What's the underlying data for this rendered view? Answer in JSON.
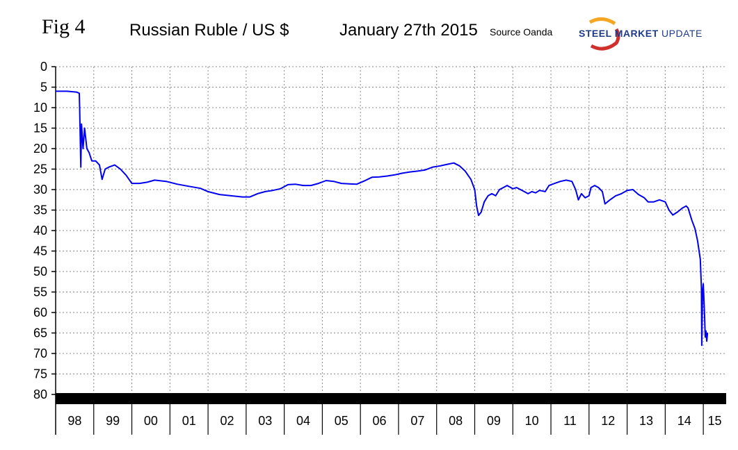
{
  "header": {
    "fig": "Fig 4",
    "title": "Russian Ruble / US $",
    "date": "January 27th 2015",
    "source": "Source Oanda"
  },
  "logo": {
    "text_main": "STEEL MARKET",
    "text_update": "UPDATE",
    "colors": {
      "orange": "#f5a623",
      "red": "#d0312d",
      "blue": "#1e3a8a"
    }
  },
  "chart_data": {
    "type": "line",
    "title": "Russian Ruble / US $",
    "xlabel": "",
    "ylabel": "",
    "y_inverted": true,
    "ylim": [
      0,
      80
    ],
    "yticks": [
      0,
      5,
      10,
      15,
      20,
      25,
      30,
      35,
      40,
      45,
      50,
      55,
      60,
      65,
      70,
      75,
      80
    ],
    "xlim": [
      1998,
      2015.6
    ],
    "x_categories": [
      "98",
      "99",
      "00",
      "01",
      "02",
      "03",
      "04",
      "05",
      "06",
      "07",
      "08",
      "09",
      "10",
      "11",
      "12",
      "13",
      "14",
      "15"
    ],
    "grid": true,
    "series": [
      {
        "color": "#0000ee",
        "points": [
          [
            1998.0,
            6.0
          ],
          [
            1998.3,
            6.0
          ],
          [
            1998.55,
            6.2
          ],
          [
            1998.62,
            6.5
          ],
          [
            1998.63,
            10.0
          ],
          [
            1998.66,
            24.5
          ],
          [
            1998.68,
            14.0
          ],
          [
            1998.72,
            20.0
          ],
          [
            1998.76,
            15.0
          ],
          [
            1998.82,
            20.0
          ],
          [
            1998.88,
            21.0
          ],
          [
            1998.95,
            23.0
          ],
          [
            1999.05,
            23.0
          ],
          [
            1999.15,
            24.0
          ],
          [
            1999.22,
            27.5
          ],
          [
            1999.3,
            25.0
          ],
          [
            1999.4,
            24.5
          ],
          [
            1999.55,
            24.0
          ],
          [
            1999.7,
            25.0
          ],
          [
            1999.85,
            26.5
          ],
          [
            2000.0,
            28.5
          ],
          [
            2000.2,
            28.5
          ],
          [
            2000.4,
            28.2
          ],
          [
            2000.6,
            27.7
          ],
          [
            2000.9,
            28.0
          ],
          [
            2001.2,
            28.7
          ],
          [
            2001.5,
            29.2
          ],
          [
            2001.8,
            29.7
          ],
          [
            2002.0,
            30.5
          ],
          [
            2002.3,
            31.2
          ],
          [
            2002.6,
            31.5
          ],
          [
            2002.9,
            31.8
          ],
          [
            2003.1,
            31.8
          ],
          [
            2003.3,
            31.0
          ],
          [
            2003.5,
            30.5
          ],
          [
            2003.7,
            30.2
          ],
          [
            2003.9,
            29.8
          ],
          [
            2004.1,
            28.8
          ],
          [
            2004.3,
            28.7
          ],
          [
            2004.5,
            29.0
          ],
          [
            2004.7,
            29.0
          ],
          [
            2004.9,
            28.5
          ],
          [
            2005.1,
            27.8
          ],
          [
            2005.3,
            28.0
          ],
          [
            2005.5,
            28.5
          ],
          [
            2005.7,
            28.6
          ],
          [
            2005.9,
            28.7
          ],
          [
            2006.1,
            27.9
          ],
          [
            2006.3,
            27.0
          ],
          [
            2006.5,
            26.9
          ],
          [
            2006.7,
            26.7
          ],
          [
            2006.9,
            26.4
          ],
          [
            2007.1,
            26.0
          ],
          [
            2007.3,
            25.7
          ],
          [
            2007.5,
            25.5
          ],
          [
            2007.7,
            25.2
          ],
          [
            2007.9,
            24.5
          ],
          [
            2008.1,
            24.2
          ],
          [
            2008.3,
            23.8
          ],
          [
            2008.45,
            23.5
          ],
          [
            2008.6,
            24.2
          ],
          [
            2008.75,
            25.5
          ],
          [
            2008.9,
            27.5
          ],
          [
            2009.0,
            30.0
          ],
          [
            2009.05,
            34.0
          ],
          [
            2009.1,
            36.3
          ],
          [
            2009.17,
            35.5
          ],
          [
            2009.25,
            33.0
          ],
          [
            2009.35,
            31.5
          ],
          [
            2009.45,
            31.0
          ],
          [
            2009.55,
            31.5
          ],
          [
            2009.65,
            30.0
          ],
          [
            2009.75,
            29.5
          ],
          [
            2009.85,
            29.0
          ],
          [
            2010.0,
            29.8
          ],
          [
            2010.1,
            29.5
          ],
          [
            2010.2,
            30.0
          ],
          [
            2010.3,
            30.5
          ],
          [
            2010.4,
            31.0
          ],
          [
            2010.5,
            30.5
          ],
          [
            2010.6,
            30.8
          ],
          [
            2010.7,
            30.2
          ],
          [
            2010.85,
            30.5
          ],
          [
            2010.95,
            29.0
          ],
          [
            2011.1,
            28.5
          ],
          [
            2011.25,
            28.0
          ],
          [
            2011.4,
            27.7
          ],
          [
            2011.55,
            28.0
          ],
          [
            2011.65,
            30.0
          ],
          [
            2011.72,
            32.5
          ],
          [
            2011.8,
            31.0
          ],
          [
            2011.9,
            32.0
          ],
          [
            2012.0,
            31.5
          ],
          [
            2012.05,
            29.5
          ],
          [
            2012.15,
            29.0
          ],
          [
            2012.25,
            29.5
          ],
          [
            2012.35,
            30.5
          ],
          [
            2012.42,
            33.5
          ],
          [
            2012.55,
            32.5
          ],
          [
            2012.7,
            31.5
          ],
          [
            2012.85,
            31.0
          ],
          [
            2013.0,
            30.2
          ],
          [
            2013.15,
            30.0
          ],
          [
            2013.3,
            31.2
          ],
          [
            2013.45,
            32.0
          ],
          [
            2013.55,
            33.0
          ],
          [
            2013.7,
            33.0
          ],
          [
            2013.85,
            32.5
          ],
          [
            2014.0,
            33.0
          ],
          [
            2014.1,
            35.0
          ],
          [
            2014.2,
            36.2
          ],
          [
            2014.32,
            35.5
          ],
          [
            2014.45,
            34.5
          ],
          [
            2014.55,
            34.0
          ],
          [
            2014.6,
            34.5
          ],
          [
            2014.7,
            37.5
          ],
          [
            2014.78,
            39.5
          ],
          [
            2014.85,
            42.5
          ],
          [
            2014.92,
            47.0
          ],
          [
            2014.95,
            54.0
          ],
          [
            2014.96,
            68.0
          ],
          [
            2014.98,
            55.0
          ],
          [
            2015.0,
            53.0
          ],
          [
            2015.03,
            60.0
          ],
          [
            2015.05,
            66.0
          ],
          [
            2015.07,
            64.5
          ],
          [
            2015.09,
            67.0
          ],
          [
            2015.11,
            65.0
          ]
        ]
      }
    ]
  }
}
